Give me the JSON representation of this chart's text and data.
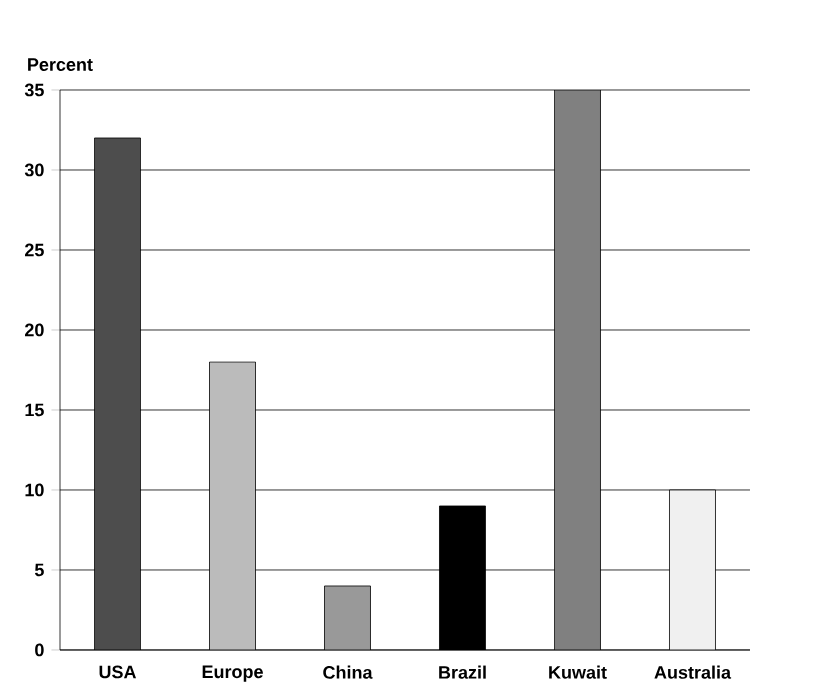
{
  "chart_data": {
    "type": "bar",
    "ylabel": "Percent",
    "categories": [
      "USA",
      "Europe",
      "China",
      "Brazil",
      "Kuwait",
      "Australia"
    ],
    "values": [
      32,
      18,
      4,
      9,
      35,
      10
    ],
    "colors": [
      "#4d4d4d",
      "#bbbbbb",
      "#999999",
      "#000000",
      "#808080",
      "#f0f0f0"
    ],
    "ylim": [
      0,
      35
    ],
    "yticks": [
      0,
      5,
      10,
      15,
      20,
      25,
      30,
      35
    ],
    "grid": "y"
  }
}
